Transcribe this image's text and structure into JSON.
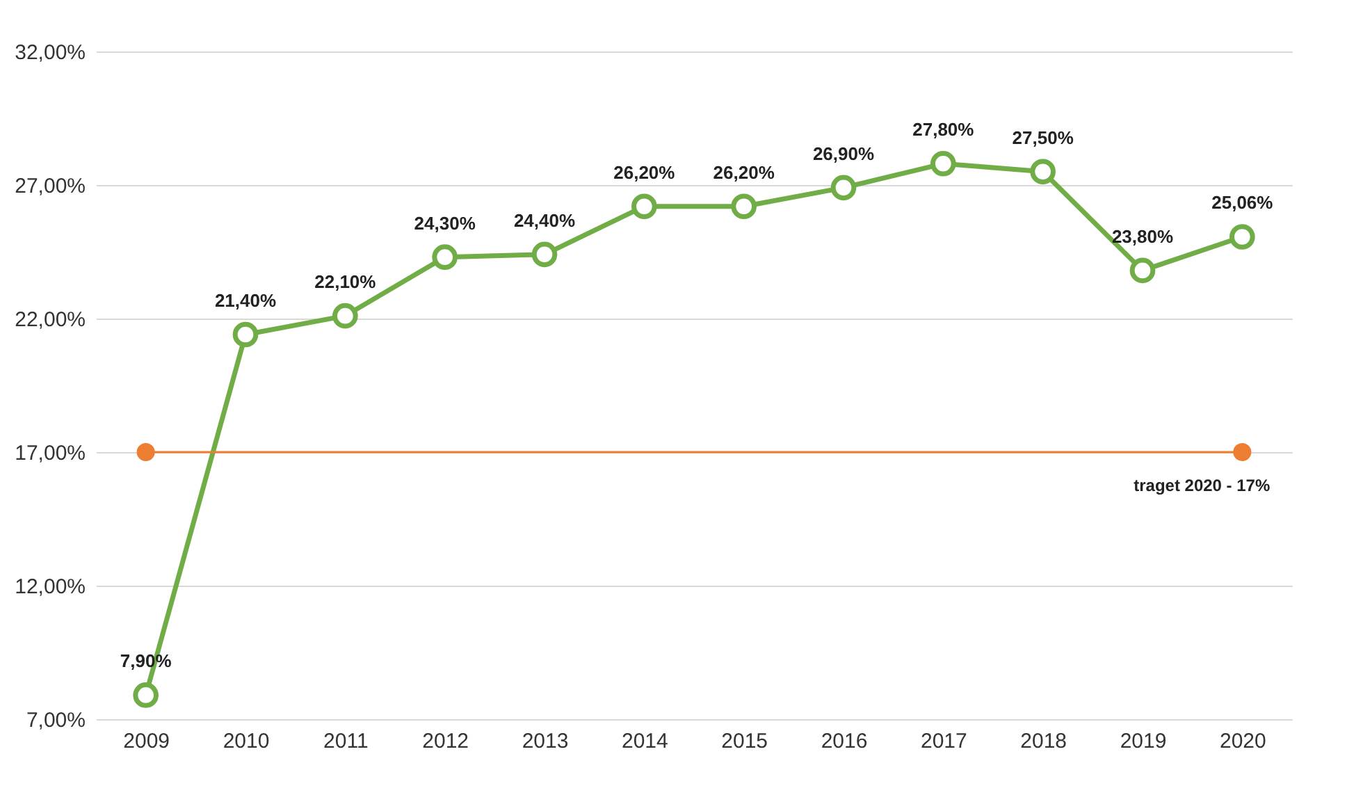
{
  "chart_data": {
    "type": "line",
    "x": [
      2009,
      2010,
      2011,
      2012,
      2013,
      2014,
      2015,
      2016,
      2017,
      2018,
      2019,
      2020
    ],
    "xlim": [
      2008.5,
      2020.5
    ],
    "xticks": [
      2009,
      2010,
      2011,
      2012,
      2013,
      2014,
      2015,
      2016,
      2017,
      2018,
      2019,
      2020
    ],
    "ylim": [
      7,
      32
    ],
    "yticks": [
      {
        "value": 7,
        "label": "7,00%"
      },
      {
        "value": 12,
        "label": "12,00%"
      },
      {
        "value": 17,
        "label": "17,00%"
      },
      {
        "value": 22,
        "label": "22,00%"
      },
      {
        "value": 27,
        "label": "27,00%"
      },
      {
        "value": 32,
        "label": "32,00%"
      }
    ],
    "grid": "y",
    "marker": "circle",
    "line_style": "solid",
    "series": [
      {
        "color": "#70ad47",
        "values": [
          7.9,
          21.4,
          22.1,
          24.3,
          24.4,
          26.2,
          26.2,
          26.9,
          27.8,
          27.5,
          23.8,
          25.06
        ],
        "value_labels": [
          "7,90%",
          "21,40%",
          "22,10%",
          "24,30%",
          "24,40%",
          "26,20%",
          "26,20%",
          "26,90%",
          "27,80%",
          "27,50%",
          "23,80%",
          "25,06%"
        ]
      },
      {
        "color": "#ed7d31",
        "x": [
          2009,
          2020
        ],
        "values": [
          17,
          17
        ]
      }
    ],
    "annotations": [
      {
        "text": "traget 2020 - 17%",
        "x": 2020,
        "y": 17
      }
    ]
  }
}
